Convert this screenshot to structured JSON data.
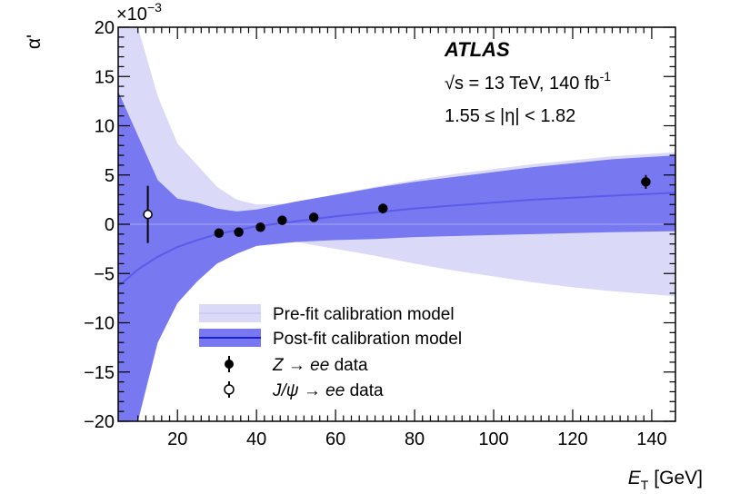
{
  "chart_data": {
    "type": "line",
    "title": "",
    "xlabel": "E_T [GeV]",
    "xlabel_main": "E",
    "xlabel_sub": "T",
    "xlabel_unit": "[GeV]",
    "ylabel": "α'",
    "y_multiplier": "×10",
    "y_multiplier_exp": "−3",
    "xlim": [
      5,
      146
    ],
    "ylim": [
      -20,
      20
    ],
    "x_ticks": [
      20,
      40,
      60,
      80,
      100,
      120,
      140
    ],
    "y_ticks": [
      -20,
      -15,
      -10,
      -5,
      0,
      5,
      10,
      15,
      20
    ],
    "annotations": {
      "experiment": "ATLAS",
      "energy": "√s = 13 TeV, 140 fb",
      "energy_exp": "-1",
      "eta_range": "1.55 ≤ |η| < 1.82"
    },
    "legend": [
      {
        "key": "prefit",
        "label": "Pre-fit calibration model"
      },
      {
        "key": "postfit",
        "label": "Post-fit calibration model"
      },
      {
        "key": "z",
        "label_sym": "Z → ",
        "label_it": "ee",
        "label_rest": " data"
      },
      {
        "key": "jpsi",
        "label_sym": "J/ψ → ",
        "label_it": "ee",
        "label_rest": " data"
      }
    ],
    "colors": {
      "prefit_band": "#dadaf8",
      "postfit_band": "#7878f0",
      "central_line": "#5b5bea",
      "markers": "#000000"
    },
    "series": [
      {
        "name": "Pre-fit calibration model",
        "kind": "band",
        "x": [
          5,
          10,
          15,
          20,
          25,
          30,
          35,
          40,
          50,
          60,
          70,
          80,
          90,
          100,
          110,
          120,
          130,
          146
        ],
        "upper": [
          20,
          20,
          13,
          8.2,
          6.0,
          3.8,
          2.5,
          2.0,
          2.1,
          3.0,
          3.8,
          4.5,
          5.1,
          5.6,
          6.1,
          6.5,
          6.9,
          7.3
        ],
        "lower": [
          -20,
          -20,
          -12,
          -8,
          -5.5,
          -3.5,
          -2.3,
          -1.8,
          -1.8,
          -2.5,
          -3.2,
          -4.0,
          -4.7,
          -5.3,
          -5.9,
          -6.4,
          -6.8,
          -7.3
        ]
      },
      {
        "name": "Post-fit calibration model",
        "kind": "band",
        "x": [
          5,
          10,
          15,
          20,
          25,
          30,
          35,
          40,
          50,
          60,
          70,
          80,
          90,
          100,
          110,
          120,
          130,
          146
        ],
        "upper": [
          13.5,
          9,
          4.5,
          2.6,
          2.2,
          1.6,
          1.3,
          1.5,
          2.3,
          3.0,
          3.7,
          4.3,
          4.8,
          5.3,
          5.8,
          6.2,
          6.6,
          7.0
        ],
        "lower": [
          -20,
          -20,
          -12,
          -8,
          -5.8,
          -4,
          -3,
          -2.2,
          -1.8,
          -1.6,
          -1.5,
          -1.3,
          -1.2,
          -1.1,
          -1.0,
          -0.9,
          -0.8,
          -0.7
        ]
      },
      {
        "name": "Post-fit central value",
        "kind": "line",
        "x": [
          5,
          10,
          15,
          20,
          25,
          30,
          35,
          40,
          50,
          60,
          70,
          80,
          90,
          100,
          110,
          120,
          130,
          146
        ],
        "y": [
          -6.3,
          -4.6,
          -3.3,
          -2.3,
          -1.6,
          -1.0,
          -0.6,
          -0.2,
          0.3,
          0.8,
          1.2,
          1.6,
          1.9,
          2.2,
          2.5,
          2.7,
          2.9,
          3.2
        ]
      },
      {
        "name": "Z → ee data",
        "kind": "points",
        "marker": "filled",
        "x": [
          30.5,
          35.5,
          41,
          46.5,
          54.5,
          72,
          138.5
        ],
        "y": [
          -0.9,
          -0.8,
          -0.3,
          0.4,
          0.7,
          1.6,
          4.3
        ],
        "err": [
          0.4,
          0.3,
          0.3,
          0.3,
          0.3,
          0.5,
          0.7
        ]
      },
      {
        "name": "J/ψ → ee data",
        "kind": "points",
        "marker": "open",
        "x": [
          12.5
        ],
        "y": [
          1.0
        ],
        "err": [
          2.9
        ]
      }
    ]
  }
}
